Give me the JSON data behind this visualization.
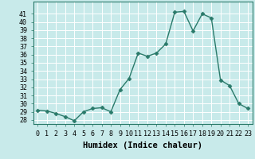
{
  "x": [
    0,
    1,
    2,
    3,
    4,
    5,
    6,
    7,
    8,
    9,
    10,
    11,
    12,
    13,
    14,
    15,
    16,
    17,
    18,
    19,
    20,
    21,
    22,
    23
  ],
  "y": [
    29.2,
    29.1,
    28.8,
    28.4,
    27.9,
    29.0,
    29.4,
    29.5,
    29.0,
    31.7,
    33.1,
    36.2,
    35.8,
    36.2,
    37.3,
    41.2,
    41.3,
    38.9,
    41.0,
    40.5,
    32.9,
    32.2,
    30.0,
    29.4
  ],
  "line_color": "#2a7a6a",
  "marker": "D",
  "markersize": 2.5,
  "linewidth": 1.0,
  "xlabel": "Humidex (Indice chaleur)",
  "ylim": [
    27.5,
    42.5
  ],
  "xlim": [
    -0.5,
    23.5
  ],
  "yticks": [
    28,
    29,
    30,
    31,
    32,
    33,
    34,
    35,
    36,
    37,
    38,
    39,
    40,
    41
  ],
  "xticks": [
    0,
    1,
    2,
    3,
    4,
    5,
    6,
    7,
    8,
    9,
    10,
    11,
    12,
    13,
    14,
    15,
    16,
    17,
    18,
    19,
    20,
    21,
    22,
    23
  ],
  "xtick_labels": [
    "0",
    "1",
    "2",
    "3",
    "4",
    "5",
    "6",
    "7",
    "8",
    "9",
    "10",
    "11",
    "12",
    "13",
    "14",
    "15",
    "16",
    "17",
    "18",
    "19",
    "20",
    "21",
    "22",
    "23"
  ],
  "bg_color": "#c8eaea",
  "grid_color": "#ffffff",
  "grid_linewidth": 0.7,
  "xlabel_fontsize": 7.5,
  "tick_fontsize": 6.0,
  "spine_color": "#2a7a6a"
}
